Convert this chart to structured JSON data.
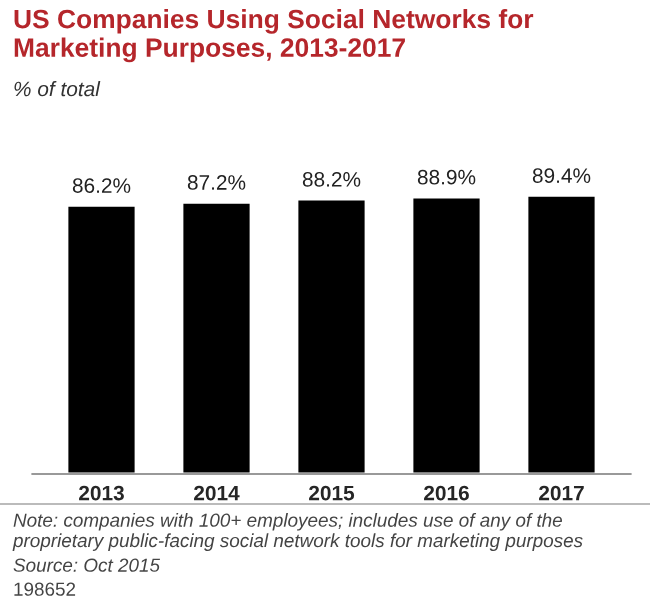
{
  "chart_data": {
    "type": "bar",
    "title": "US Companies Using Social Networks for Marketing Purposes, 2013-2017",
    "subtitle": "% of total",
    "categories": [
      "2013",
      "2014",
      "2015",
      "2016",
      "2017"
    ],
    "values": [
      86.2,
      87.2,
      88.2,
      88.9,
      89.4
    ],
    "color": "#000000",
    "data_labels": true,
    "value_labels": [
      "86.2%",
      "87.2%",
      "88.2%",
      "88.9%",
      "89.4%"
    ],
    "grid": false,
    "legend": false,
    "annotations": [
      "Note: companies with 100+ employees; includes use of any of the proprietary public-facing social network tools for marketing purposes",
      "Source: Oct 2015",
      "198652"
    ]
  }
}
